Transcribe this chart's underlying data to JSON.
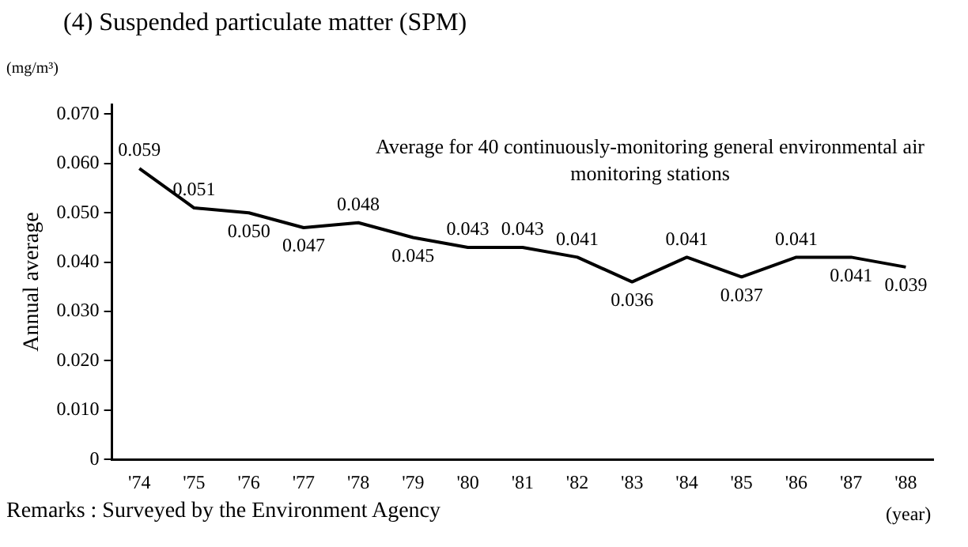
{
  "chart_data": {
    "type": "line",
    "title": "(4) Suspended particulate matter (SPM)",
    "ylabel": "Annual average",
    "xlabel": "(year)",
    "annotations": [
      "(mg/m³)",
      "Average for 40 continuously-monitoring general environmental air monitoring stations",
      "Remarks : Surveyed by the Environment Agency"
    ],
    "categories": [
      "'74",
      "'75",
      "'76",
      "'77",
      "'78",
      "'79",
      "'80",
      "'81",
      "'82",
      "'83",
      "'84",
      "'85",
      "'86",
      "'87",
      "'88"
    ],
    "series": [
      {
        "color": "#000000",
        "values": [
          0.059,
          0.051,
          0.05,
          0.047,
          0.048,
          0.045,
          0.043,
          0.043,
          0.041,
          0.036,
          0.041,
          0.037,
          0.041,
          0.041,
          0.039
        ],
        "value_labels": [
          "0.059",
          "0.051",
          "0.050",
          "0.047",
          "0.048",
          "0.045",
          "0.043",
          "0.043",
          "0.041",
          "0.036",
          "0.041",
          "0.037",
          "0.041",
          "0.041",
          "0.039"
        ]
      }
    ],
    "ylim": [
      0,
      0.072
    ],
    "yticks": [
      {
        "value": 0,
        "label": "0"
      },
      {
        "value": 0.01,
        "label": "0.010"
      },
      {
        "value": 0.02,
        "label": "0.020"
      },
      {
        "value": 0.03,
        "label": "0.030"
      },
      {
        "value": 0.04,
        "label": "0.040"
      },
      {
        "value": 0.05,
        "label": "0.050"
      },
      {
        "value": 0.06,
        "label": "0.060"
      },
      {
        "value": 0.07,
        "label": "0.070"
      }
    ],
    "grid": false,
    "legend": false,
    "marker": "none",
    "line_style": "solid"
  }
}
